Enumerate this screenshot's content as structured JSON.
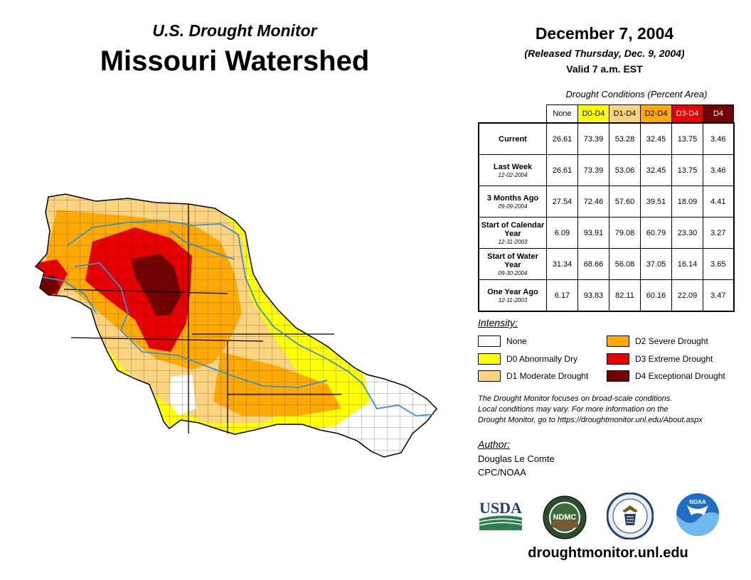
{
  "header": {
    "title_small": "U.S. Drought Monitor",
    "title_big": "Missouri Watershed",
    "date": "December 7, 2004",
    "released": "(Released Thursday, Dec. 9, 2004)",
    "valid": "Valid 7 a.m. EST"
  },
  "table": {
    "caption": "Drought Conditions (Percent Area)",
    "columns": [
      "None",
      "D0-D4",
      "D1-D4",
      "D2-D4",
      "D3-D4",
      "D4"
    ],
    "rows": [
      {
        "label": "Current",
        "sub": "",
        "values": [
          "26.61",
          "73.39",
          "53.28",
          "32.45",
          "13.75",
          "3.46"
        ]
      },
      {
        "label": "Last Week",
        "sub": "12-02-2004",
        "values": [
          "26.61",
          "73.39",
          "53.06",
          "32.45",
          "13.75",
          "3.46"
        ]
      },
      {
        "label": "3 Months Ago",
        "sub": "09-09-2004",
        "values": [
          "27.54",
          "72.46",
          "57.60",
          "39.51",
          "18.09",
          "4.41"
        ]
      },
      {
        "label": "Start of Calendar Year",
        "sub": "12-31-2003",
        "values": [
          "6.09",
          "93.91",
          "79.08",
          "60.79",
          "23.30",
          "3.27"
        ]
      },
      {
        "label": "Start of Water Year",
        "sub": "09-30-2004",
        "values": [
          "31.34",
          "68.66",
          "56.08",
          "37.05",
          "16.14",
          "3.65"
        ]
      },
      {
        "label": "One Year Ago",
        "sub": "12-11-2003",
        "values": [
          "6.17",
          "93.83",
          "82.11",
          "60.16",
          "22.09",
          "3.47"
        ]
      }
    ]
  },
  "legend": {
    "title": "Intensity:",
    "items": [
      {
        "label": "None",
        "color": "#ffffff"
      },
      {
        "label": "D0 Abnormally Dry",
        "color": "#ffff00"
      },
      {
        "label": "D1 Moderate Drought",
        "color": "#fcd37f"
      },
      {
        "label": "D2 Severe Drought",
        "color": "#ffaa00"
      },
      {
        "label": "D3 Extreme Drought",
        "color": "#e60000"
      },
      {
        "label": "D4 Exceptional Drought",
        "color": "#730000"
      }
    ]
  },
  "note": {
    "line1": "The Drought Monitor focuses on broad-scale conditions.",
    "line2": "Local conditions may vary. For more information on the",
    "line3": "Drought Monitor, go to https://droughtmonitor.unl.edu/About.aspx"
  },
  "author": {
    "title": "Author:",
    "name": "Douglas Le Comte",
    "org": "CPC/NOAA"
  },
  "logos": {
    "usda": "USDA",
    "ndmc": "NDMC",
    "noaa": "NOAA"
  },
  "site": "droughtmonitor.unl.edu",
  "colors": {
    "none": "#ffffff",
    "d0": "#ffff00",
    "d1": "#fcd37f",
    "d2": "#ffaa00",
    "d3": "#e60000",
    "d4": "#730000",
    "river": "#3a8fd9"
  }
}
